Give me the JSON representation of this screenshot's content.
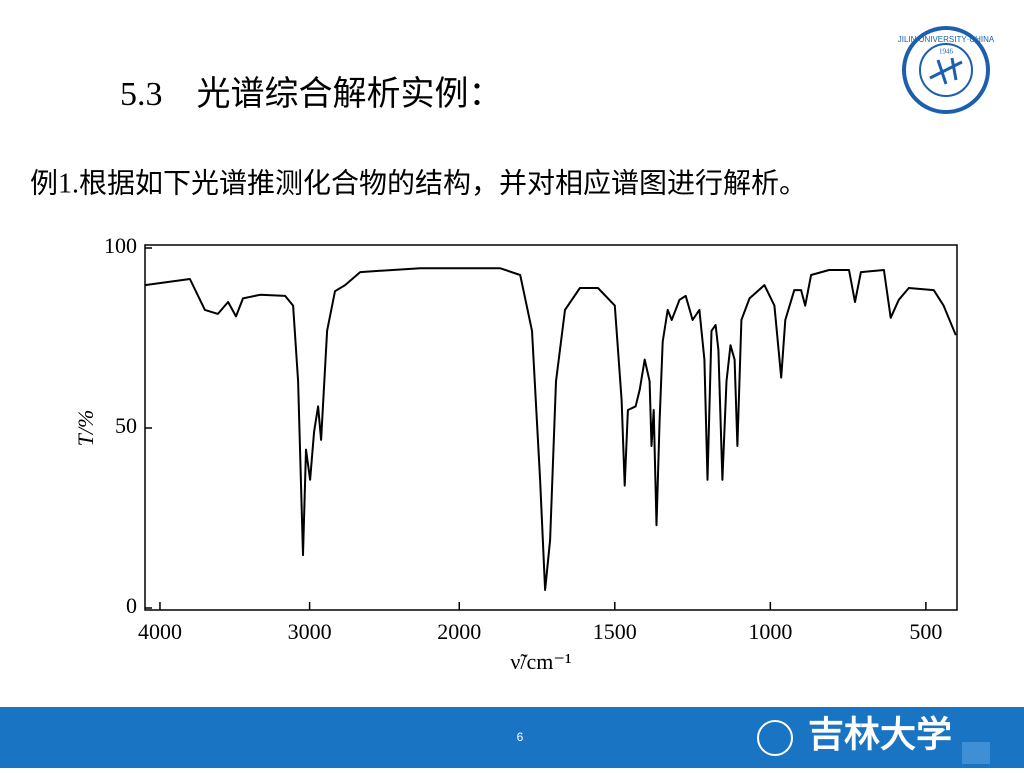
{
  "slide": {
    "heading": "5.3　光谱综合解析实例：",
    "prompt": "例1.根据如下光谱推测化合物的结构，并对相应谱图进行解析。",
    "page_number": "6",
    "logo_ring": "JILIN UNIVERSITY·CHINA",
    "logo_year": "1946",
    "footer_name": "吉林大学"
  },
  "chart_data": {
    "type": "line",
    "xlabel": "ν̃/cm⁻¹",
    "ylabel": "T/%",
    "color": "#000000",
    "xlim": [
      4100,
      400
    ],
    "xticks": [
      4000,
      3000,
      2000,
      1500,
      1000,
      500
    ],
    "xscale_break": 2000,
    "ylim": [
      0,
      100
    ],
    "yticks": [
      0,
      50,
      100
    ],
    "x": [
      4100,
      3800,
      3700,
      3613,
      3545,
      3492,
      3445,
      3331,
      3164,
      3110,
      3077,
      3044,
      3024,
      2997,
      2970,
      2943,
      2923,
      2883,
      2830,
      2763,
      2662,
      2261,
      1869,
      1804,
      1766,
      1740,
      1724,
      1708,
      1689,
      1660,
      1612,
      1554,
      1500,
      1478,
      1468,
      1458,
      1433,
      1420,
      1404,
      1388,
      1382,
      1375,
      1366,
      1356,
      1346,
      1330,
      1317,
      1292,
      1272,
      1250,
      1228,
      1212,
      1202,
      1189,
      1176,
      1167,
      1154,
      1141,
      1128,
      1115,
      1106,
      1093,
      1067,
      1019,
      987,
      965,
      952,
      923,
      901,
      888,
      869,
      811,
      747,
      728,
      709,
      635,
      613,
      587,
      555,
      475,
      443,
      404
    ],
    "values": [
      89.7,
      91.4,
      82.8,
      81.7,
      85,
      81,
      86,
      87,
      86.7,
      84,
      63,
      14.7,
      44,
      35.6,
      49,
      56,
      46.7,
      77,
      88,
      89.7,
      93.3,
      94.4,
      94.4,
      92.5,
      77,
      35.6,
      5,
      18.9,
      63,
      82.8,
      88.9,
      88.9,
      84,
      57.8,
      34,
      55,
      56,
      60.6,
      69,
      63,
      45,
      55,
      23,
      52,
      74,
      82.8,
      80,
      85.6,
      86.7,
      80,
      82.8,
      69,
      35.6,
      77,
      78.6,
      71.7,
      35.6,
      63,
      73,
      69,
      45,
      80,
      86,
      89.7,
      84,
      64,
      80,
      88.3,
      88.3,
      84,
      92.5,
      93.9,
      93.9,
      85,
      93.3,
      93.9,
      80.6,
      85.6,
      88.9,
      88.3,
      84,
      75.8
    ]
  }
}
